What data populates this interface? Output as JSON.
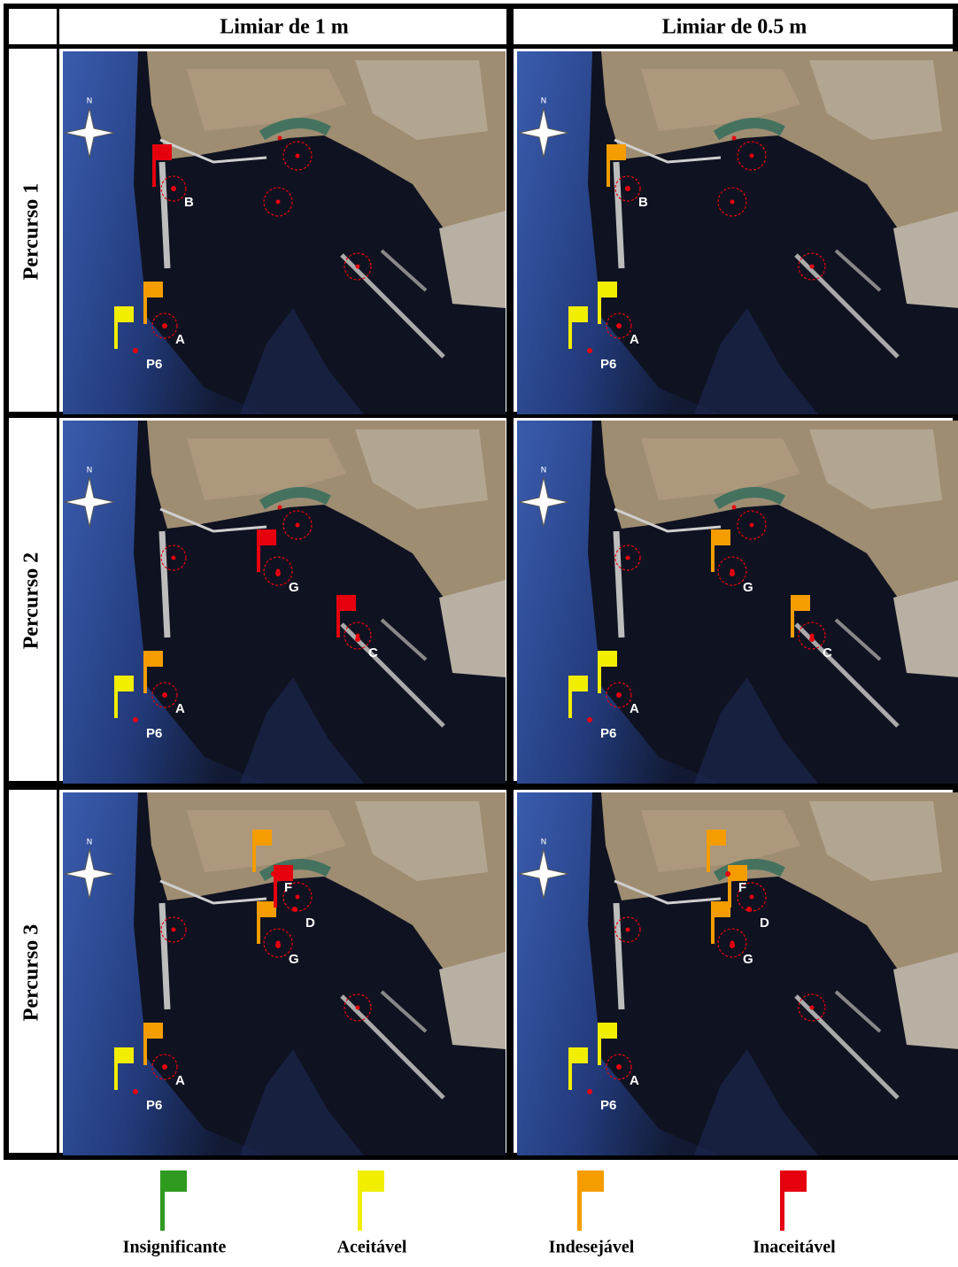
{
  "header": {
    "columns": [
      "Limiar de 1 m",
      "Limiar de 0.5 m"
    ]
  },
  "sites": [
    "P6",
    "A",
    "B",
    "C",
    "G",
    "D",
    "F"
  ],
  "rows": [
    {
      "label": "Percurso 1",
      "panels": [
        {
          "flags": [
            "#f2ee00",
            "#f59d00",
            "#e6000e",
            null,
            null,
            null,
            null
          ]
        },
        {
          "flags": [
            "#f2ee00",
            "#f2ee00",
            "#f59d00",
            null,
            null,
            null,
            null
          ]
        }
      ]
    },
    {
      "label": "Percurso 2",
      "panels": [
        {
          "flags": [
            "#f2ee00",
            "#f59d00",
            null,
            "#e6000e",
            "#e6000e",
            null,
            null
          ]
        },
        {
          "flags": [
            "#f2ee00",
            "#f2ee00",
            null,
            "#f59d00",
            "#f59d00",
            null,
            null
          ]
        }
      ]
    },
    {
      "label": "Percurso 3",
      "panels": [
        {
          "flags": [
            "#f2ee00",
            "#f59d00",
            null,
            null,
            "#f59d00",
            "#e6000e",
            "#f59d00"
          ]
        },
        {
          "flags": [
            "#f2ee00",
            "#f2ee00",
            null,
            null,
            "#f59d00",
            "#f59d00",
            "#f59d00"
          ]
        }
      ]
    }
  ],
  "legend": [
    {
      "label": "Insignificante",
      "color": "#2f9a1f"
    },
    {
      "label": "Aceitável",
      "color": "#f2ee00"
    },
    {
      "label": "Indesejável",
      "color": "#f59d00"
    },
    {
      "label": "Inaceitável",
      "color": "#e6000e"
    }
  ]
}
